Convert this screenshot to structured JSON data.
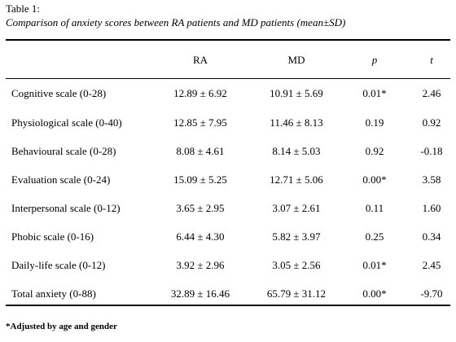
{
  "caption": {
    "title": "Table 1:",
    "subtitle": "Comparison of anxiety scores between RA patients and MD patients (mean±SD)"
  },
  "table": {
    "headers": [
      "",
      "RA",
      "MD",
      "p",
      "t"
    ],
    "rows": [
      [
        "Cognitive scale (0-28)",
        "12.89 ± 6.92",
        "10.91 ± 5.69",
        "0.01*",
        "2.46"
      ],
      [
        "Physiological scale (0-40)",
        "12.85 ± 7.95",
        "11.46 ± 8.13",
        "0.19",
        "0.92"
      ],
      [
        "Behavioural scale (0-28)",
        "8.08 ± 4.61",
        "8.14 ± 5.03",
        "0.92",
        "-0.18"
      ],
      [
        "Evaluation scale (0-24)",
        "15.09 ± 5.25",
        "12.71 ± 5.06",
        "0.00*",
        "3.58"
      ],
      [
        "Interpersonal scale (0-12)",
        "3.65 ± 2.95",
        "3.07 ± 2.61",
        "0.11",
        "1.60"
      ],
      [
        "Phobic scale (0-16)",
        "6.44 ± 4.30",
        "5.82 ± 3.97",
        "0.25",
        "0.34"
      ],
      [
        "Daily-life scale (0-12)",
        "3.92 ± 2.96",
        "3.05 ± 2.56",
        "0.01*",
        "2.45"
      ],
      [
        "Total anxiety (0-88)",
        "32.89 ± 16.46",
        "65.79 ± 31.12",
        "0.00*",
        "-9.70"
      ]
    ]
  },
  "footnote": "*Adjusted by age and gender"
}
